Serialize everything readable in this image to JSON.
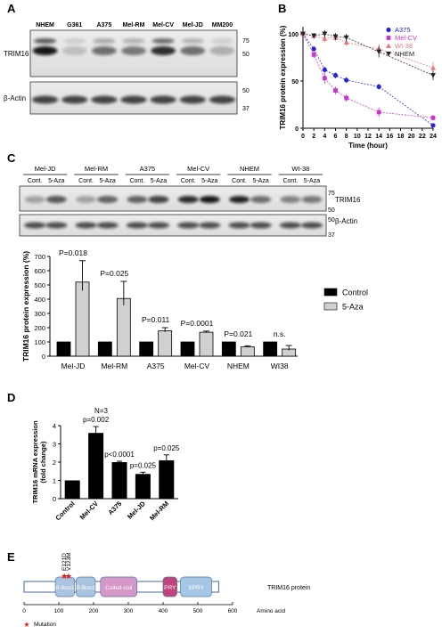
{
  "panels": {
    "A": {
      "letter": "A",
      "lanes": [
        "NHEM",
        "G361",
        "A375",
        "Mel-RM",
        "Mel-CV",
        "Mel-JD",
        "MM200"
      ],
      "blots": [
        "TRIM16",
        "β-Actin"
      ],
      "markers_trim16": [
        "75",
        "50"
      ],
      "markers_actin": [
        "50",
        "37"
      ]
    },
    "B": {
      "letter": "B",
      "legend": [
        "A375",
        "Mel-CV",
        "WI-38",
        "NHEM"
      ]
    },
    "C": {
      "letter": "C",
      "groups": [
        "Mel-JD",
        "Mel-RM",
        "A375",
        "Mel-CV",
        "NHEM",
        "WI-38"
      ],
      "lane_labels": [
        "Cont.",
        "5-Aza"
      ],
      "blots": [
        "TRIM16",
        "β-Actin"
      ],
      "markers_trim16": [
        "75",
        "50"
      ],
      "markers_actin": [
        "50",
        "37"
      ]
    },
    "D": {
      "letter": "D",
      "note": "N=3"
    },
    "E": {
      "letter": "E",
      "mutations": [
        "E121D",
        "V123M"
      ],
      "domains": [
        "B-Box1",
        "B-Box2",
        "Coiled-coil",
        "PRY",
        "SPRY"
      ],
      "protein_label": "TRIM16 protein",
      "axis_ticks": [
        "0",
        "100",
        "200",
        "300",
        "400",
        "500",
        "600"
      ],
      "axis_unit": "Amino acid",
      "mutation_legend": "Mutation"
    }
  },
  "colors": {
    "control_bar": "#000000",
    "aza_bar": "#d0d0d0",
    "a375": "#2424d8",
    "melcv": "#cc33cc",
    "wi38": "#e87878",
    "nhem": "#222222",
    "bbox": "#aac4e0",
    "coiled": "#d596c8",
    "pry": "#c0447a",
    "spry": "#a6c6e6",
    "star": "#e01818"
  },
  "chart_data": [
    {
      "panel": "B",
      "type": "line",
      "xlabel": "Time (hour)",
      "ylabel": "TRIM16 protein expression (%)",
      "xlim": [
        0,
        24
      ],
      "ylim": [
        0,
        100
      ],
      "xticks": [
        0,
        2,
        4,
        6,
        8,
        10,
        12,
        14,
        16,
        18,
        20,
        22,
        24
      ],
      "yticks": [
        0,
        50,
        100
      ],
      "series": [
        {
          "name": "A375",
          "x": [
            0,
            2,
            4,
            6,
            8,
            14,
            24
          ],
          "y": [
            100,
            84,
            62,
            56,
            51,
            44,
            3
          ],
          "err": [
            0,
            3,
            3,
            3,
            3,
            3,
            2
          ]
        },
        {
          "name": "Mel-CV",
          "x": [
            0,
            2,
            4,
            6,
            8,
            14,
            24
          ],
          "y": [
            100,
            78,
            53,
            40,
            32,
            17,
            11
          ],
          "err": [
            0,
            4,
            6,
            4,
            4,
            5,
            3
          ]
        },
        {
          "name": "WI-38",
          "x": [
            0,
            2,
            4,
            6,
            8,
            14,
            24
          ],
          "y": [
            100,
            98,
            95,
            96,
            91,
            84,
            64
          ],
          "err": [
            0,
            3,
            4,
            3,
            4,
            5,
            6
          ]
        },
        {
          "name": "NHEM",
          "x": [
            0,
            2,
            4,
            6,
            8,
            14,
            24
          ],
          "y": [
            100,
            98,
            100,
            97,
            96,
            81,
            56
          ],
          "err": [
            0,
            3,
            4,
            4,
            4,
            6,
            5
          ]
        }
      ]
    },
    {
      "panel": "C",
      "type": "bar",
      "ylabel": "TRIM16 protein expression (%)",
      "ylim": [
        0,
        700
      ],
      "yticks": [
        0,
        100,
        200,
        300,
        400,
        500,
        600,
        700
      ],
      "categories": [
        "Mel-JD",
        "Mel-RM",
        "A375",
        "Mel-CV",
        "NHEM",
        "WI38"
      ],
      "series": [
        {
          "name": "Control",
          "values": [
            100,
            100,
            100,
            100,
            100,
            100
          ],
          "err": [
            0,
            0,
            0,
            0,
            0,
            0
          ]
        },
        {
          "name": "5-Aza",
          "values": [
            520,
            405,
            178,
            168,
            65,
            50
          ],
          "err": [
            150,
            120,
            22,
            8,
            8,
            25
          ]
        }
      ],
      "annotations": [
        "P=0.018",
        "P=0.025",
        "P=0.011",
        "P=0.0001",
        "P=0.021",
        "n.s."
      ]
    },
    {
      "panel": "D",
      "type": "bar",
      "ylabel": "TRIM16 mRNA expression (fold change)",
      "ylim": [
        0,
        4
      ],
      "yticks": [
        0,
        1,
        2,
        3,
        4
      ],
      "categories": [
        "Control",
        "Mel-CV",
        "A375",
        "Mel-JD",
        "Mel-RM"
      ],
      "values": [
        1.0,
        3.6,
        2.0,
        1.35,
        2.1
      ],
      "err": [
        0,
        0.35,
        0.05,
        0.1,
        0.3
      ],
      "annotations": [
        "",
        "p=0.002",
        "p<0.0001",
        "p=0.025",
        "p=0.025"
      ]
    }
  ]
}
